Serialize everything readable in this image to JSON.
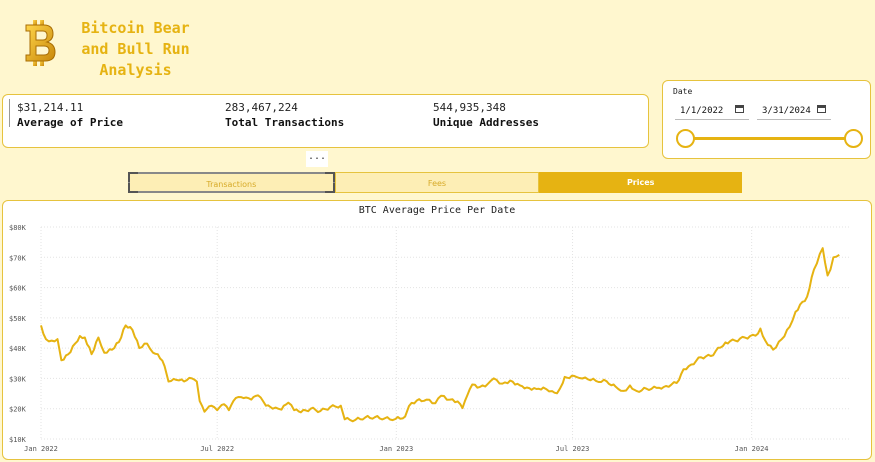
{
  "header": {
    "title": "Bitcoin Bear and Bull Run Analysis",
    "logo_icon": "bitcoin-icon"
  },
  "kpis": [
    {
      "value": "$31,214.11",
      "label": "Average of Price"
    },
    {
      "value": "283,467,224",
      "label": "Total Transactions"
    },
    {
      "value": "544,935,348",
      "label": "Unique Addresses"
    }
  ],
  "date_filter": {
    "title": "Date",
    "start": "1/1/2022",
    "end": "3/31/2024"
  },
  "more_options": "...",
  "tabs": [
    {
      "label": "Transactions",
      "selected": false
    },
    {
      "label": "Fees",
      "selected": false
    },
    {
      "label": "Prices",
      "selected": true
    }
  ],
  "colors": {
    "accent": "#e6b312",
    "background": "#fff7cf"
  },
  "chart_data": {
    "type": "line",
    "title": "BTC Average Price Per Date",
    "ylim": [
      10000,
      80000
    ],
    "y_ticks": [
      "$10K",
      "$20K",
      "$30K",
      "$40K",
      "$50K",
      "$60K",
      "$70K",
      "$80K"
    ],
    "x_ticks": [
      "Jan 2022",
      "Jul 2022",
      "Jan 2023",
      "Jul 2023",
      "Jan 2024"
    ],
    "grid": true,
    "series": [
      {
        "points": [
          [
            "2022-01-01",
            47500
          ],
          [
            "2022-01-06",
            43000
          ],
          [
            "2022-01-12",
            42500
          ],
          [
            "2022-01-18",
            43000
          ],
          [
            "2022-01-22",
            36000
          ],
          [
            "2022-01-29",
            38000
          ],
          [
            "2022-02-05",
            41500
          ],
          [
            "2022-02-10",
            44000
          ],
          [
            "2022-02-15",
            43500
          ],
          [
            "2022-02-22",
            38000
          ],
          [
            "2022-03-01",
            43500
          ],
          [
            "2022-03-07",
            38500
          ],
          [
            "2022-03-15",
            39500
          ],
          [
            "2022-03-22",
            42000
          ],
          [
            "2022-03-29",
            47500
          ],
          [
            "2022-04-05",
            46000
          ],
          [
            "2022-04-12",
            40000
          ],
          [
            "2022-04-20",
            41500
          ],
          [
            "2022-04-26",
            38500
          ],
          [
            "2022-05-01",
            38000
          ],
          [
            "2022-05-08",
            34000
          ],
          [
            "2022-05-12",
            29000
          ],
          [
            "2022-05-20",
            29500
          ],
          [
            "2022-05-28",
            29000
          ],
          [
            "2022-06-05",
            30000
          ],
          [
            "2022-06-10",
            29000
          ],
          [
            "2022-06-13",
            22500
          ],
          [
            "2022-06-18",
            19000
          ],
          [
            "2022-06-25",
            21000
          ],
          [
            "2022-07-01",
            19500
          ],
          [
            "2022-07-08",
            21500
          ],
          [
            "2022-07-13",
            19500
          ],
          [
            "2022-07-20",
            23500
          ],
          [
            "2022-07-28",
            23500
          ],
          [
            "2022-08-05",
            23000
          ],
          [
            "2022-08-12",
            24400
          ],
          [
            "2022-08-20",
            21000
          ],
          [
            "2022-08-27",
            20000
          ],
          [
            "2022-09-05",
            19700
          ],
          [
            "2022-09-12",
            22000
          ],
          [
            "2022-09-18",
            19500
          ],
          [
            "2022-09-25",
            18800
          ],
          [
            "2022-10-05",
            20000
          ],
          [
            "2022-10-15",
            19200
          ],
          [
            "2022-10-25",
            20500
          ],
          [
            "2022-11-05",
            21000
          ],
          [
            "2022-11-09",
            16500
          ],
          [
            "2022-11-20",
            16300
          ],
          [
            "2022-11-30",
            17100
          ],
          [
            "2022-12-10",
            17200
          ],
          [
            "2022-12-20",
            16800
          ],
          [
            "2022-12-31",
            16600
          ],
          [
            "2023-01-10",
            17400
          ],
          [
            "2023-01-14",
            20900
          ],
          [
            "2023-01-22",
            22700
          ],
          [
            "2023-02-01",
            23000
          ],
          [
            "2023-02-10",
            21800
          ],
          [
            "2023-02-16",
            24300
          ],
          [
            "2023-02-25",
            23000
          ],
          [
            "2023-03-05",
            22400
          ],
          [
            "2023-03-10",
            20200
          ],
          [
            "2023-03-15",
            24500
          ],
          [
            "2023-03-20",
            28000
          ],
          [
            "2023-03-28",
            27200
          ],
          [
            "2023-04-05",
            28200
          ],
          [
            "2023-04-11",
            30000
          ],
          [
            "2023-04-20",
            28300
          ],
          [
            "2023-04-28",
            29300
          ],
          [
            "2023-05-08",
            27700
          ],
          [
            "2023-05-15",
            27000
          ],
          [
            "2023-05-25",
            26500
          ],
          [
            "2023-06-01",
            27000
          ],
          [
            "2023-06-10",
            25800
          ],
          [
            "2023-06-15",
            25100
          ],
          [
            "2023-06-21",
            28500
          ],
          [
            "2023-06-23",
            30500
          ],
          [
            "2023-07-05",
            30500
          ],
          [
            "2023-07-14",
            30300
          ],
          [
            "2023-07-25",
            29200
          ],
          [
            "2023-08-05",
            29100
          ],
          [
            "2023-08-17",
            26500
          ],
          [
            "2023-08-25",
            26000
          ],
          [
            "2023-08-29",
            27700
          ],
          [
            "2023-09-05",
            25800
          ],
          [
            "2023-09-15",
            26600
          ],
          [
            "2023-09-28",
            26900
          ],
          [
            "2023-10-05",
            27500
          ],
          [
            "2023-10-16",
            28500
          ],
          [
            "2023-10-23",
            33000
          ],
          [
            "2023-10-31",
            34600
          ],
          [
            "2023-11-10",
            37000
          ],
          [
            "2023-11-20",
            37400
          ],
          [
            "2023-12-05",
            41900
          ],
          [
            "2023-12-15",
            42500
          ],
          [
            "2023-12-25",
            43500
          ],
          [
            "2024-01-05",
            44100
          ],
          [
            "2024-01-10",
            46500
          ],
          [
            "2024-01-15",
            42500
          ],
          [
            "2024-01-23",
            39500
          ],
          [
            "2024-02-01",
            43000
          ],
          [
            "2024-02-09",
            47000
          ],
          [
            "2024-02-15",
            52000
          ],
          [
            "2024-02-27",
            57000
          ],
          [
            "2024-03-05",
            66000
          ],
          [
            "2024-03-14",
            73000
          ],
          [
            "2024-03-19",
            64000
          ],
          [
            "2024-03-22",
            66000
          ],
          [
            "2024-03-25",
            70000
          ],
          [
            "2024-03-31",
            70800
          ]
        ]
      }
    ]
  }
}
